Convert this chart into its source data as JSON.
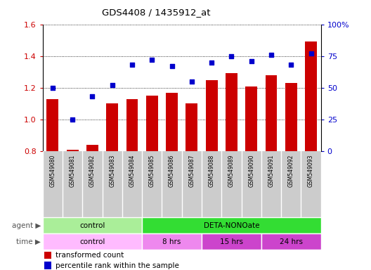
{
  "title": "GDS4408 / 1435912_at",
  "samples": [
    "GSM549080",
    "GSM549081",
    "GSM549082",
    "GSM549083",
    "GSM549084",
    "GSM549085",
    "GSM549086",
    "GSM549087",
    "GSM549088",
    "GSM549089",
    "GSM549090",
    "GSM549091",
    "GSM549092",
    "GSM549093"
  ],
  "transformed_count": [
    1.13,
    0.81,
    0.84,
    1.1,
    1.13,
    1.15,
    1.17,
    1.1,
    1.25,
    1.29,
    1.21,
    1.28,
    1.23,
    1.49
  ],
  "percentile_rank": [
    50,
    25,
    43,
    52,
    68,
    72,
    67,
    55,
    70,
    75,
    71,
    76,
    68,
    77
  ],
  "bar_color": "#cc0000",
  "dot_color": "#0000cc",
  "ylim_left": [
    0.8,
    1.6
  ],
  "ylim_right": [
    0,
    100
  ],
  "yticks_left": [
    0.8,
    1.0,
    1.2,
    1.4,
    1.6
  ],
  "yticks_right": [
    0,
    25,
    50,
    75,
    100
  ],
  "ytick_labels_right": [
    "0",
    "25",
    "50",
    "75",
    "100%"
  ],
  "agent_row": [
    {
      "label": "control",
      "start": 0,
      "end": 5,
      "color": "#aaee99"
    },
    {
      "label": "DETA-NONOate",
      "start": 5,
      "end": 14,
      "color": "#33dd33"
    }
  ],
  "time_row": [
    {
      "label": "control",
      "start": 0,
      "end": 5,
      "color": "#ffbbff"
    },
    {
      "label": "8 hrs",
      "start": 5,
      "end": 8,
      "color": "#ee88ee"
    },
    {
      "label": "15 hrs",
      "start": 8,
      "end": 11,
      "color": "#cc44cc"
    },
    {
      "label": "24 hrs",
      "start": 11,
      "end": 14,
      "color": "#cc44cc"
    }
  ],
  "legend_items": [
    {
      "label": "transformed count",
      "color": "#cc0000"
    },
    {
      "label": "percentile rank within the sample",
      "color": "#0000cc"
    }
  ],
  "axis_color_left": "#cc0000",
  "axis_color_right": "#0000cc",
  "tick_label_bg": "#cccccc",
  "plot_bg": "#ffffff"
}
